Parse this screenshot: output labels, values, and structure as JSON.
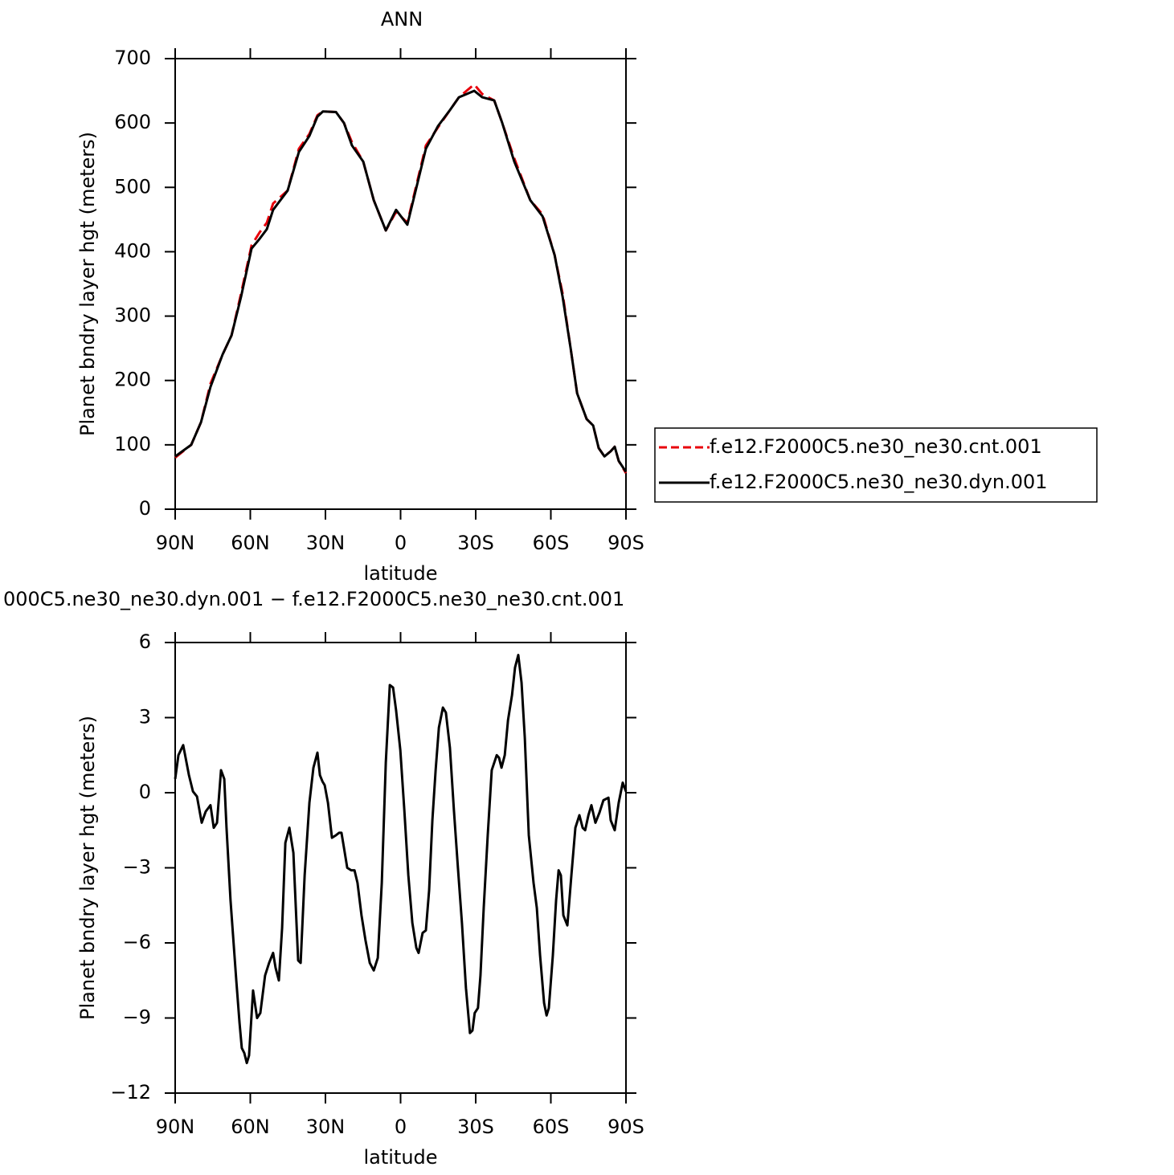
{
  "chart_data": [
    {
      "type": "line",
      "title": "ANN",
      "xlabel": "latitude",
      "ylabel": "Planet bndry layer hgt (meters)",
      "x": [
        90.0,
        83.6,
        79.7,
        75.9,
        71.1,
        67.5,
        63.7,
        59.5,
        56.3,
        53.4,
        50.9,
        45.1,
        40.6,
        36.4,
        33.2,
        31.0,
        25.8,
        22.6,
        19.4,
        14.9,
        10.7,
        5.9,
        1.8,
        -2.7,
        -10.1,
        -14.9,
        -19.7,
        -23.3,
        -29.4,
        -32.6,
        -37.4,
        -40.6,
        -45.4,
        -51.8,
        -56.7,
        -61.5,
        -64.7,
        -67.9,
        -70.5,
        -74.3,
        -76.9,
        -79.1,
        -81.4,
        -83.9,
        -85.5,
        -87.1,
        -90.0
      ],
      "xlim": [
        90,
        -90
      ],
      "xticks": [
        {
          "value": 90,
          "label": "90N"
        },
        {
          "value": 60,
          "label": "60N"
        },
        {
          "value": 30,
          "label": "30N"
        },
        0,
        {
          "value": -30,
          "label": "30S"
        },
        {
          "value": -60,
          "label": "60S"
        },
        {
          "value": -90,
          "label": "90S"
        }
      ],
      "ylim": [
        0,
        700
      ],
      "yticks": [
        0,
        100,
        200,
        300,
        400,
        500,
        600,
        700
      ],
      "legend": "right",
      "series": [
        {
          "name": "f.e12.F2000C5.ne30_ne30.cnt.001",
          "color": "#e8000b",
          "style": "dashed",
          "values": [
            80,
            100,
            135,
            195,
            240,
            270,
            335,
            410,
            430,
            445,
            475,
            495,
            560,
            583,
            612,
            618,
            617,
            600,
            570,
            540,
            480,
            433,
            462,
            445,
            565,
            593,
            620,
            640,
            660,
            645,
            635,
            600,
            545,
            480,
            458,
            395,
            335,
            250,
            180,
            140,
            130,
            95,
            82,
            90,
            97,
            75,
            56
          ]
        },
        {
          "name": "f.e12.F2000C5.ne30_ne30.dyn.001",
          "color": "#000000",
          "style": "solid",
          "values": [
            82,
            100,
            135,
            190,
            240,
            270,
            330,
            405,
            420,
            435,
            465,
            495,
            555,
            580,
            610,
            618,
            617,
            600,
            565,
            540,
            480,
            433,
            465,
            442,
            560,
            595,
            620,
            640,
            650,
            640,
            635,
            600,
            540,
            480,
            455,
            395,
            330,
            250,
            180,
            140,
            130,
            95,
            82,
            90,
            97,
            75,
            58
          ]
        }
      ]
    },
    {
      "type": "line",
      "title": "000C5.ne30_ne30.dyn.001 − f.e12.F2000C5.ne30_ne30.cnt.001",
      "xlabel": "latitude",
      "ylabel": "Planet bndry layer hgt (meters)",
      "x": [
        90.0,
        88.7,
        86.8,
        84.5,
        82.9,
        81.3,
        79.4,
        77.8,
        75.9,
        74.6,
        73.3,
        71.7,
        70.4,
        69.5,
        67.9,
        65.6,
        64.3,
        63.4,
        62.4,
        61.4,
        60.5,
        58.9,
        57.3,
        56.0,
        54.1,
        52.5,
        50.9,
        49.9,
        48.6,
        47.3,
        46.0,
        44.4,
        42.8,
        40.9,
        39.9,
        38.3,
        36.4,
        34.8,
        33.2,
        32.2,
        31.2,
        30.3,
        29.0,
        27.4,
        25.8,
        24.5,
        23.6,
        22.6,
        21.3,
        19.7,
        18.4,
        17.2,
        15.6,
        14.0,
        12.3,
        10.7,
        9.1,
        7.5,
        5.9,
        4.3,
        3.0,
        1.8,
        0.1,
        -1.5,
        -3.1,
        -4.7,
        -6.3,
        -7.2,
        -8.8,
        -10.1,
        -11.4,
        -12.7,
        -14.0,
        -15.3,
        -16.9,
        -18.1,
        -19.7,
        -21.3,
        -22.9,
        -24.5,
        -26.1,
        -27.7,
        -28.7,
        -29.6,
        -30.9,
        -31.9,
        -33.2,
        -34.8,
        -36.4,
        -38.4,
        -39.3,
        -40.3,
        -41.6,
        -42.9,
        -44.5,
        -45.7,
        -47.0,
        -48.3,
        -49.6,
        -51.2,
        -53.1,
        -54.4,
        -55.7,
        -57.3,
        -58.3,
        -59.2,
        -60.8,
        -62.1,
        -63.1,
        -64.0,
        -65.0,
        -66.6,
        -68.2,
        -69.8,
        -71.4,
        -72.7,
        -73.7,
        -75.0,
        -76.2,
        -77.8,
        -79.4,
        -81.0,
        -83.0,
        -83.9,
        -85.5,
        -87.1,
        -88.7,
        -90.0
      ],
      "xlim": [
        90,
        -90
      ],
      "xticks": [
        {
          "value": 90,
          "label": "90N"
        },
        {
          "value": 60,
          "label": "60N"
        },
        {
          "value": 30,
          "label": "30N"
        },
        0,
        {
          "value": -30,
          "label": "30S"
        },
        {
          "value": -60,
          "label": "60S"
        },
        {
          "value": -90,
          "label": "90S"
        }
      ],
      "ylim": [
        -12,
        6
      ],
      "yticks": [
        {
          "value": -12,
          "label": "−12"
        },
        {
          "value": -9,
          "label": "−9"
        },
        {
          "value": -6,
          "label": "−6"
        },
        {
          "value": -3,
          "label": "−3"
        },
        0,
        3,
        6
      ],
      "series": [
        {
          "color": "#000000",
          "style": "solid",
          "values": [
            0.55,
            1.5,
            1.9,
            0.7,
            0.05,
            -0.15,
            -1.2,
            -0.75,
            -0.5,
            -1.4,
            -1.2,
            0.9,
            0.55,
            -1.4,
            -4.3,
            -7.5,
            -9.2,
            -10.2,
            -10.4,
            -10.8,
            -10.5,
            -7.9,
            -9.0,
            -8.8,
            -7.3,
            -6.8,
            -6.4,
            -7.0,
            -7.5,
            -5.4,
            -2.0,
            -1.4,
            -2.4,
            -6.7,
            -6.8,
            -3.3,
            -0.4,
            1.0,
            1.6,
            0.7,
            0.45,
            0.3,
            -0.4,
            -1.8,
            -1.7,
            -1.6,
            -1.6,
            -2.2,
            -3.0,
            -3.1,
            -3.1,
            -3.6,
            -4.9,
            -5.9,
            -6.8,
            -7.1,
            -6.6,
            -3.6,
            1.2,
            4.3,
            4.2,
            3.3,
            1.7,
            -0.7,
            -3.3,
            -5.2,
            -6.2,
            -6.4,
            -5.6,
            -5.5,
            -3.9,
            -1.1,
            0.9,
            2.6,
            3.4,
            3.2,
            1.8,
            -0.7,
            -3.0,
            -5.2,
            -7.8,
            -9.6,
            -9.5,
            -8.8,
            -8.6,
            -7.3,
            -4.6,
            -1.7,
            0.9,
            1.5,
            1.4,
            1.0,
            1.5,
            2.9,
            3.9,
            5.0,
            5.5,
            4.4,
            2.2,
            -1.7,
            -3.6,
            -4.6,
            -6.5,
            -8.4,
            -8.9,
            -8.6,
            -6.5,
            -4.3,
            -3.1,
            -3.3,
            -4.9,
            -5.3,
            -3.3,
            -1.4,
            -0.9,
            -1.4,
            -1.5,
            -0.9,
            -0.5,
            -1.2,
            -0.8,
            -0.3,
            -0.2,
            -1.1,
            -1.5,
            -0.4,
            0.4,
            0.05
          ]
        }
      ]
    }
  ]
}
